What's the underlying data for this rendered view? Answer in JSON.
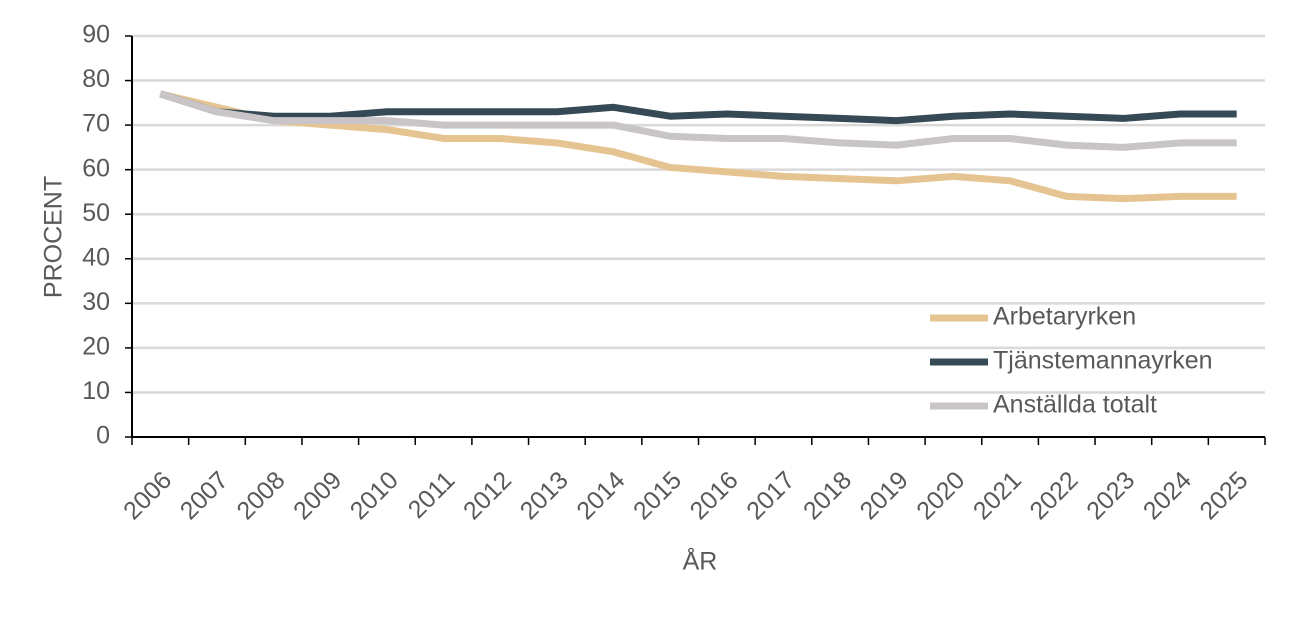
{
  "chart_data": {
    "type": "line",
    "x_label": "ÅR",
    "y_label": "PROCENT",
    "categories": [
      "2006",
      "2007",
      "2008",
      "2009",
      "2010",
      "2011",
      "2012",
      "2013",
      "2014",
      "2015",
      "2016",
      "2017",
      "2018",
      "2019",
      "2020",
      "2021",
      "2022",
      "2023",
      "2024",
      "2025"
    ],
    "series": [
      {
        "name": "Arbetaryrken",
        "color": "#e6c491",
        "values": [
          77,
          74,
          71,
          70,
          69,
          67,
          67,
          66,
          64,
          60.5,
          59.5,
          58.5,
          58,
          57.5,
          58.5,
          57.5,
          54,
          53.5,
          54,
          54
        ]
      },
      {
        "name": "Tjänstemannayrken",
        "color": "#354a55",
        "values": [
          77,
          73,
          72,
          72,
          73,
          73,
          73,
          73,
          74,
          72,
          72.5,
          72,
          71.5,
          71,
          72,
          72.5,
          72,
          71.5,
          72.5,
          72.5
        ]
      },
      {
        "name": "Anställda totalt",
        "color": "#c9c4c7",
        "values": [
          77,
          73,
          71,
          71,
          71,
          70,
          70,
          70,
          70,
          67.5,
          67,
          67,
          66,
          65.5,
          67,
          67,
          65.5,
          65,
          66,
          66
        ]
      }
    ],
    "ylim": [
      0,
      90
    ],
    "yticks": [
      0,
      10,
      20,
      30,
      40,
      50,
      60,
      70,
      80,
      90
    ],
    "grid": true,
    "legend": "lower right"
  }
}
